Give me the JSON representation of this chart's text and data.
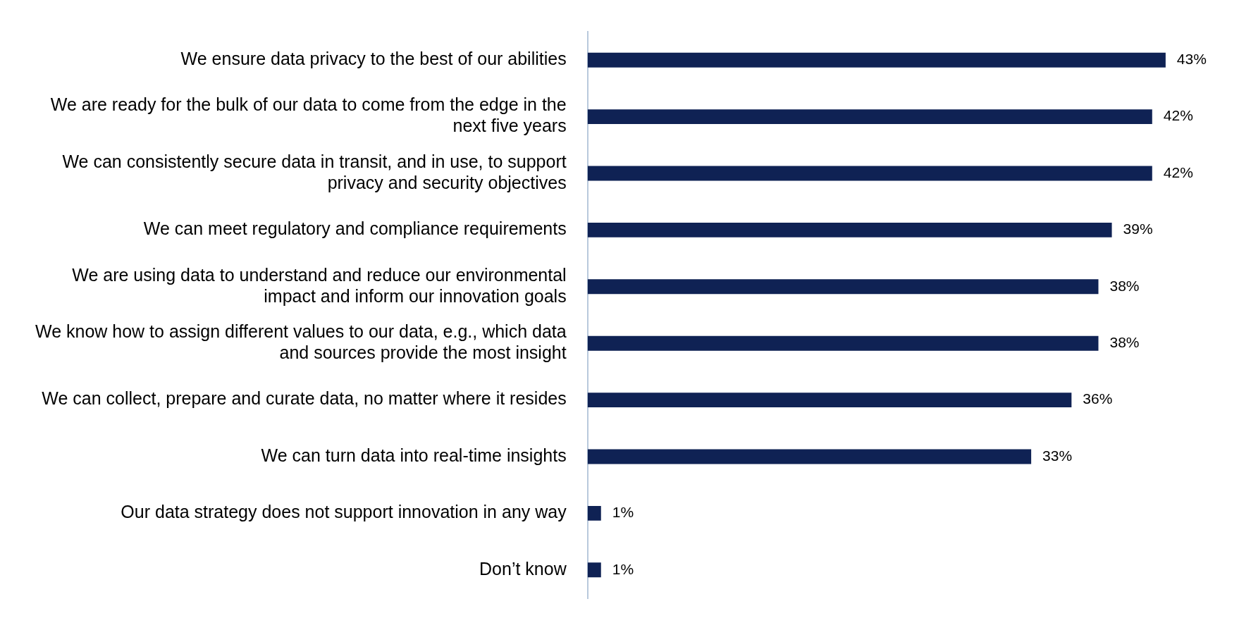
{
  "chart_data": {
    "type": "bar",
    "orientation": "horizontal",
    "categories": [
      "We ensure data privacy to the best of our abilities",
      "We are ready for the bulk of our data to come from the edge in the next five years",
      "We can consistently secure data in transit, and in use, to support privacy and security objectives",
      "We can meet regulatory and compliance requirements",
      "We are using data to understand and reduce our environmental impact and inform our innovation goals",
      "We know how to assign different values to our data, e.g., which data and sources provide the most insight",
      "We can collect, prepare and curate data, no matter where it resides",
      "We can turn data into real-time insights",
      "Our data strategy does not support innovation in any way",
      "Don’t know"
    ],
    "values": [
      43,
      42,
      42,
      39,
      38,
      38,
      36,
      33,
      1,
      1
    ],
    "value_labels": [
      "43%",
      "42%",
      "42%",
      "39%",
      "38%",
      "38%",
      "36%",
      "33%",
      "1%",
      "1%"
    ],
    "color": "#0f2254"
  }
}
